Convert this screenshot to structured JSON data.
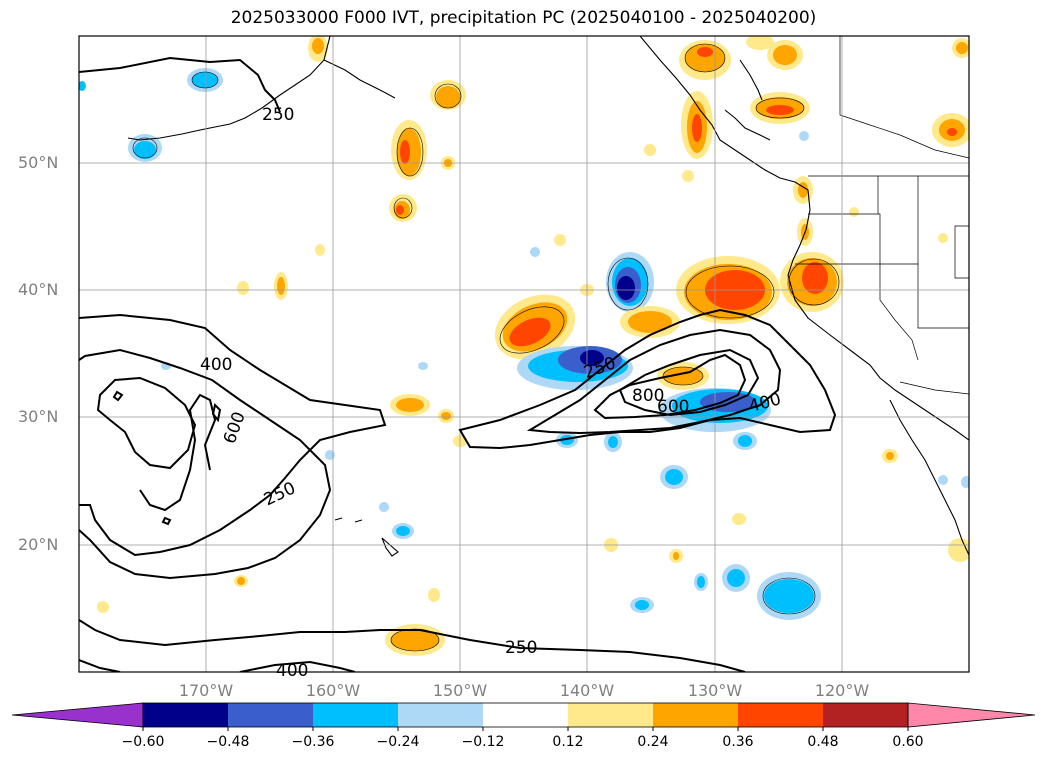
{
  "title": "2025033000 F000 IVT, precipitation PC (2025040100 - 2025040200)",
  "lat_labels": [
    "50°N",
    "40°N",
    "30°N",
    "20°N"
  ],
  "lon_labels": [
    "170°W",
    "160°W",
    "150°W",
    "140°W",
    "130°W",
    "120°W"
  ],
  "contour_labels": [
    "250",
    "400",
    "600",
    "250",
    "250",
    "400",
    "250",
    "800",
    "600",
    "400"
  ],
  "colorbar": {
    "ticks": [
      "−0.60",
      "−0.48",
      "−0.36",
      "−0.24",
      "−0.12",
      "0.12",
      "0.24",
      "0.36",
      "0.48",
      "0.60"
    ],
    "colors": [
      "#9932cc",
      "#00008b",
      "#3a5fcd",
      "#00bfff",
      "#add8f6",
      "#ffffff",
      "#ffe98a",
      "#ffa500",
      "#ff4500",
      "#b22222",
      "#ff88aa"
    ]
  },
  "map_extent": {
    "lon": [
      -180,
      -110
    ],
    "lat": [
      10,
      60
    ]
  },
  "colors": {
    "land_outline": "#000000",
    "grid": "#999999"
  }
}
